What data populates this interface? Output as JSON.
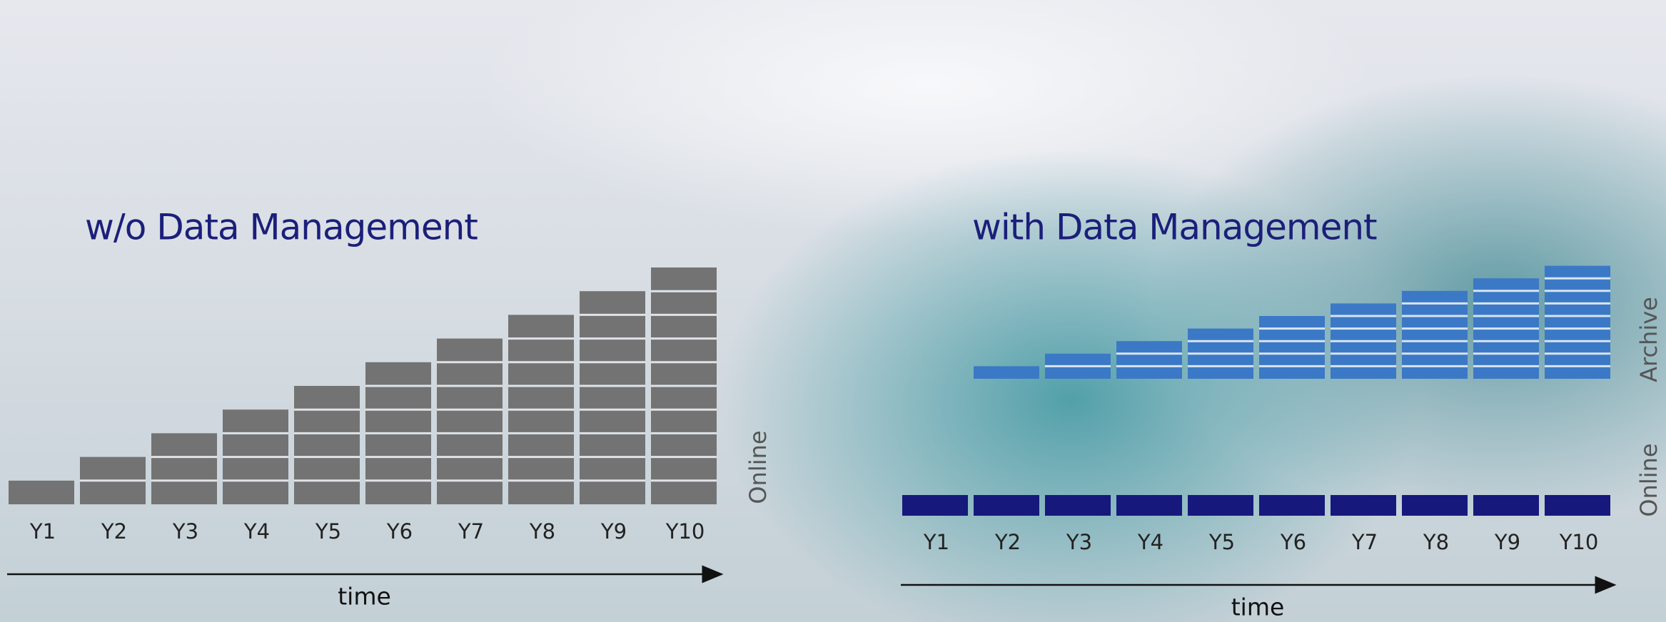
{
  "chart_data": [
    {
      "type": "bar",
      "title": "w/o Data Management",
      "categories": [
        "Y1",
        "Y2",
        "Y3",
        "Y4",
        "Y5",
        "Y6",
        "Y7",
        "Y8",
        "Y9",
        "Y10"
      ],
      "series": [
        {
          "name": "Online",
          "color": "#737373",
          "values": [
            1,
            2,
            3,
            4,
            5,
            6,
            7,
            8,
            9,
            10
          ]
        }
      ],
      "xlabel": "time"
    },
    {
      "type": "bar",
      "title": "with Data Management",
      "categories": [
        "Y1",
        "Y2",
        "Y3",
        "Y4",
        "Y5",
        "Y6",
        "Y7",
        "Y8",
        "Y9",
        "Y10"
      ],
      "series": [
        {
          "name": "Online",
          "color": "#17187c",
          "values": [
            1,
            1,
            1,
            1,
            1,
            1,
            1,
            1,
            1,
            1
          ]
        },
        {
          "name": "Archive",
          "color": "#3b79c6",
          "values": [
            0,
            1,
            2,
            3,
            4,
            5,
            6,
            7,
            8,
            9
          ]
        }
      ],
      "xlabel": "time"
    }
  ]
}
